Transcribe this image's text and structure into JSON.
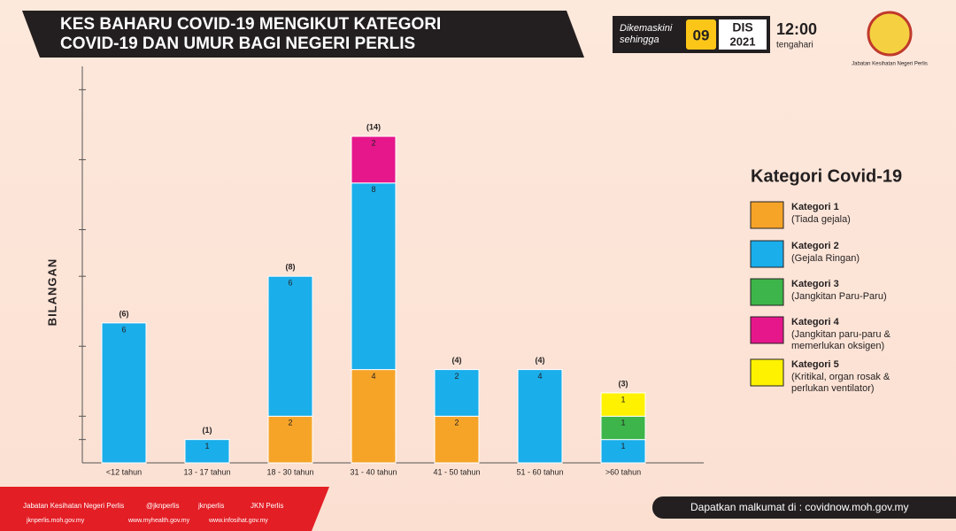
{
  "header": {
    "title_line1": "KES BAHARU COVID-19 MENGIKUT KATEGORI",
    "title_line2": "COVID-19 DAN UMUR BAGI NEGERI PERLIS",
    "updated_line1": "Dikemaskini",
    "updated_line2": "sehingga",
    "day": "09",
    "month": "DIS",
    "year": "2021",
    "time": "12:00",
    "time_note": "tengahari",
    "agency": "Jabatan Kesihatan Negeri Perlis"
  },
  "chart_data": {
    "type": "stacked_bar",
    "ylabel": "BILANGAN",
    "categories": [
      "<12 tahun",
      "13 - 17 tahun",
      "18 - 30 tahun",
      "31 - 40 tahun",
      "41 - 50 tahun",
      "51 - 60 tahun",
      ">60 tahun"
    ],
    "series": [
      {
        "name": "Kategori 1",
        "description": "(Tiada gejala)",
        "color": "#f6a428",
        "values": [
          null,
          null,
          2,
          4,
          2,
          null,
          null
        ]
      },
      {
        "name": "Kategori 2",
        "description": "(Gejala Ringan)",
        "color": "#1aaeea",
        "values": [
          6,
          1,
          6,
          8,
          2,
          4,
          1
        ]
      },
      {
        "name": "Kategori 3",
        "description": "(Jangkitan Paru-Paru)",
        "color": "#3db54a",
        "values": [
          null,
          null,
          null,
          null,
          null,
          null,
          1
        ]
      },
      {
        "name": "Kategori 4",
        "description": "(Jangkitan paru-paru & memerlukan oksigen)",
        "color": "#e6168b",
        "values": [
          null,
          null,
          null,
          2,
          null,
          null,
          null
        ]
      },
      {
        "name": "Kategori 5",
        "description": "(Kritikal, organ rosak & perlukan ventilator)",
        "color": "#fff200",
        "values": [
          null,
          null,
          null,
          null,
          null,
          null,
          1
        ]
      }
    ],
    "totals": {
      "values": [
        6,
        1,
        8,
        14,
        4,
        4,
        3
      ],
      "value_labels": [
        "(6)",
        "(1)",
        "(8)",
        "(14)",
        "(4)",
        "(4)",
        "(3)"
      ]
    },
    "ylim": [
      0,
      17
    ],
    "yticks": [
      1,
      2,
      5,
      8,
      10,
      13,
      16
    ],
    "legend_title": "Kategori Covid-19"
  },
  "footer": {
    "facebook": "Jabatan Kesihatan Negeri Perlis",
    "twitter": "@jknperlis",
    "instagram": "jknperlis",
    "youtube": "JKN Perlis",
    "site1": "jknperlis.moh.gov.my",
    "site2": "www.myhealth.gov.my",
    "site3": "www.infosihat.gov.my",
    "info": "Dapatkan malkumat di : covidnow.moh.gov.my"
  }
}
